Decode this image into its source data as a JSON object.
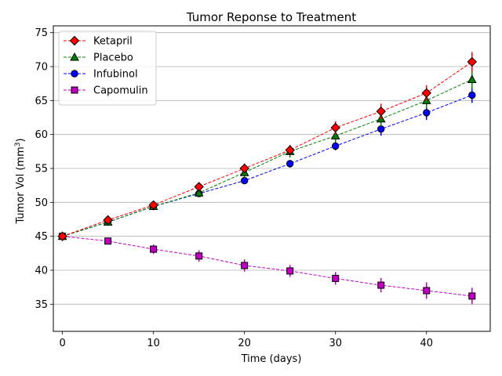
{
  "chart_data": {
    "type": "line",
    "title": "Tumor Reponse to Treatment",
    "xlabel": "Time (days)",
    "ylabel_main": "Tumor Vol (mm",
    "ylabel_sup": "3",
    "ylabel_close": ")",
    "xlim": [
      -1,
      47
    ],
    "ylim": [
      31,
      76
    ],
    "xticks": [
      0,
      10,
      20,
      30,
      40
    ],
    "yticks": [
      35,
      40,
      45,
      50,
      55,
      60,
      65,
      70,
      75
    ],
    "x": [
      0,
      5,
      10,
      15,
      20,
      25,
      30,
      35,
      40,
      45
    ],
    "grid": "horizontal",
    "legend_position": "top-left",
    "series": [
      {
        "name": "Ketapril",
        "color": "#ff0000",
        "marker": "diamond",
        "values": [
          45.0,
          47.4,
          49.6,
          52.3,
          55.0,
          57.7,
          61.0,
          63.4,
          66.1,
          70.7
        ],
        "errors": [
          0,
          0.26,
          0.36,
          0.58,
          0.73,
          0.76,
          0.93,
          1.13,
          1.16,
          1.45
        ]
      },
      {
        "name": "Placebo",
        "color": "#008000",
        "marker": "triangle",
        "values": [
          45.0,
          47.1,
          49.4,
          51.4,
          54.4,
          57.5,
          59.8,
          62.3,
          65.0,
          68.1
        ],
        "errors": [
          0,
          0.22,
          0.4,
          0.61,
          0.84,
          0.91,
          0.95,
          1.09,
          1.15,
          1.35
        ]
      },
      {
        "name": "Infubinol",
        "color": "#0000ff",
        "marker": "circle",
        "values": [
          45.0,
          47.1,
          49.4,
          51.3,
          53.2,
          55.7,
          58.3,
          60.8,
          63.2,
          65.8
        ],
        "errors": [
          0,
          0.24,
          0.28,
          0.36,
          0.48,
          0.55,
          0.63,
          0.98,
          1.06,
          1.14
        ]
      },
      {
        "name": "Capomulin",
        "color": "#c000c0",
        "marker": "square",
        "values": [
          45.0,
          44.3,
          43.1,
          42.1,
          40.7,
          39.9,
          38.8,
          37.8,
          37.0,
          36.2
        ],
        "errors": [
          0,
          0.45,
          0.7,
          0.84,
          0.91,
          0.88,
          0.93,
          1.05,
          1.22,
          1.22
        ]
      }
    ]
  }
}
